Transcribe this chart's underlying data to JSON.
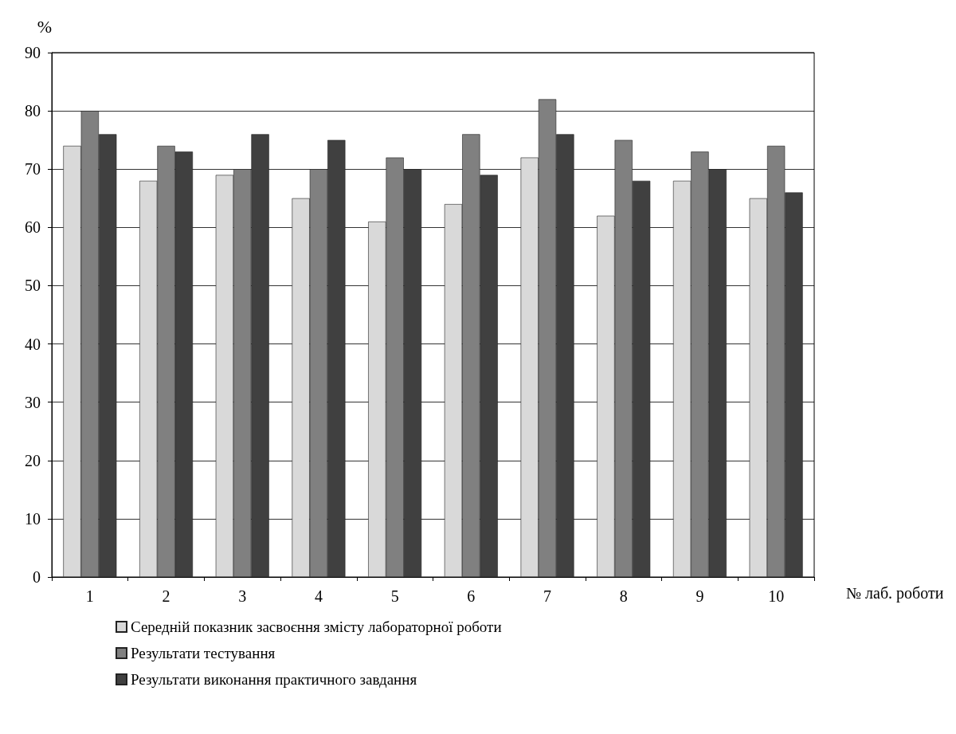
{
  "chart_data": {
    "type": "bar",
    "ylabel": "%",
    "xlabel": "№ лаб. роботи",
    "categories": [
      "1",
      "2",
      "3",
      "4",
      "5",
      "6",
      "7",
      "8",
      "9",
      "10"
    ],
    "series": [
      {
        "name": "Середній показник засвоєння змісту лабораторної роботи",
        "color": "#d9d9d9",
        "values": [
          74,
          68,
          69,
          65,
          61,
          64,
          72,
          62,
          68,
          65
        ]
      },
      {
        "name": "Результати тестування",
        "color": "#808080",
        "values": [
          80,
          74,
          70,
          70,
          72,
          76,
          82,
          75,
          73,
          74
        ]
      },
      {
        "name": "Результати виконання практичного завдання",
        "color": "#404040",
        "values": [
          76,
          73,
          76,
          75,
          70,
          69,
          76,
          68,
          70,
          66
        ]
      }
    ],
    "ylim": [
      0,
      90
    ],
    "yticks": [
      0,
      10,
      20,
      30,
      40,
      50,
      60,
      70,
      80,
      90
    ],
    "grid": "y",
    "legend": "bottom"
  }
}
